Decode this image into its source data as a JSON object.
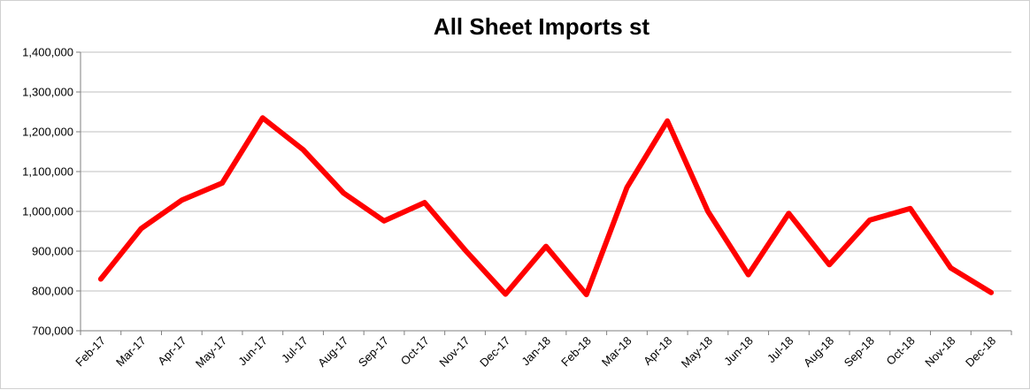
{
  "chart_data": {
    "type": "line",
    "title": "All Sheet Imports st",
    "xlabel": "",
    "ylabel": "",
    "ylim": [
      700000,
      1400000
    ],
    "yticks": [
      700000,
      800000,
      900000,
      1000000,
      1100000,
      1200000,
      1300000,
      1400000
    ],
    "grid": true,
    "legend": "none",
    "categories": [
      "Feb-17",
      "Mar-17",
      "Apr-17",
      "May-17",
      "Jun-17",
      "Jul-17",
      "Aug-17",
      "Sep-17",
      "Oct-17",
      "Nov-17",
      "Dec-17",
      "Jan-18",
      "Feb-18",
      "Mar-18",
      "Apr-18",
      "May-18",
      "Jun-18",
      "Jul-18",
      "Aug-18",
      "Sep-18",
      "Oct-18",
      "Nov-18",
      "Dec-18"
    ],
    "series": [
      {
        "color": "#ff0000",
        "values": [
          830000,
          957000,
          1028000,
          1071000,
          1235000,
          1155000,
          1046000,
          976000,
          1022000,
          903000,
          792000,
          912000,
          791000,
          1060000,
          1227000,
          1000000,
          841000,
          995000,
          866000,
          978000,
          1007000,
          858000,
          796000
        ]
      }
    ]
  }
}
